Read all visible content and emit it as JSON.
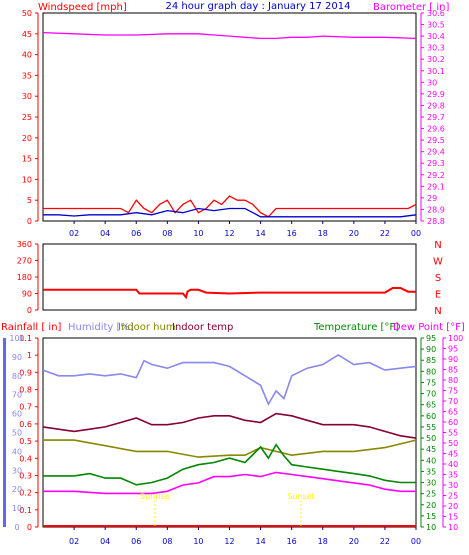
{
  "colors": {
    "windspeed": "#ff0000",
    "avg_wind": "#0000cc",
    "barometer": "#ff00ff",
    "direction": "#ff0000",
    "rainfall": "#ff0000",
    "humidity": "#8888ee",
    "indoor_hum": "#888800",
    "indoor_temp": "#880033",
    "temperature": "#008800",
    "dew_point": "#ff00ff",
    "title": "#0000cc",
    "bar_axis": "#6666ee",
    "annotation": "#ffff00"
  },
  "chart_data": [
    {
      "type": "line",
      "title": "24 hour graph day : January 17 2014",
      "ylabel_left": "Windspeed [mph]",
      "ylabel_right": "Barometer [ in]",
      "x_ticks": [
        "02",
        "04",
        "06",
        "08",
        "10",
        "12",
        "14",
        "16",
        "18",
        "20",
        "22",
        "00"
      ],
      "ylim_left": [
        0,
        50
      ],
      "y_ticks_left": [
        "0",
        "5",
        "10",
        "15",
        "20",
        "25",
        "30",
        "35",
        "40",
        "45",
        "50"
      ],
      "ylim_right": [
        28.8,
        30.6
      ],
      "y_ticks_right": [
        "28.8",
        "28.9",
        "29",
        "29.1",
        "29.2",
        "29.3",
        "29.4",
        "29.5",
        "29.6",
        "29.7",
        "29.8",
        "29.9",
        "30",
        "30.1",
        "30.2",
        "30.3",
        "30.4",
        "30.5",
        "30.6"
      ],
      "x_range_hours": [
        0,
        24
      ],
      "series": [
        {
          "key": "barometer",
          "axis": "right",
          "color_key": "barometer",
          "x": [
            0,
            2,
            4,
            6,
            8,
            10,
            11,
            12,
            13,
            14,
            15,
            16,
            17,
            18,
            20,
            22,
            24
          ],
          "values": [
            30.43,
            30.42,
            30.41,
            30.41,
            30.42,
            30.42,
            30.41,
            30.4,
            30.39,
            30.38,
            30.38,
            30.39,
            30.39,
            30.4,
            30.39,
            30.39,
            30.38
          ]
        },
        {
          "key": "windspeed",
          "axis": "left",
          "color_key": "windspeed",
          "x": [
            0,
            1,
            2,
            3,
            4,
            5,
            5.5,
            6,
            6.5,
            7,
            7.5,
            8,
            8.5,
            9,
            9.5,
            10,
            10.5,
            11,
            11.5,
            12,
            12.5,
            13,
            13.5,
            14,
            14.5,
            15,
            16,
            17,
            18,
            19,
            20,
            21,
            22,
            23,
            23.5,
            24
          ],
          "values": [
            3,
            3,
            3,
            3,
            3,
            3,
            2,
            5,
            3,
            2,
            4,
            5,
            2,
            4,
            5,
            2,
            3,
            5,
            4,
            6,
            5,
            5,
            4,
            2,
            1,
            3,
            3,
            3,
            3,
            3,
            3,
            3,
            3,
            3,
            3,
            4
          ]
        },
        {
          "key": "avg_wind",
          "axis": "left",
          "color_key": "avg_wind",
          "x": [
            0,
            1,
            2,
            3,
            4,
            5,
            6,
            7,
            8,
            9,
            10,
            11,
            12,
            13,
            14,
            15,
            16,
            17,
            18,
            19,
            20,
            21,
            22,
            23,
            24
          ],
          "values": [
            1.5,
            1.5,
            1.2,
            1.5,
            1.5,
            1.5,
            2,
            1.5,
            2.5,
            2,
            3,
            2.5,
            3,
            3,
            1,
            1,
            1,
            1,
            1,
            1,
            1,
            1,
            1,
            1,
            1.5
          ]
        }
      ]
    },
    {
      "type": "line",
      "title": "",
      "y_ticks_left": [
        "360",
        "270",
        "180",
        "90",
        "0"
      ],
      "y_labels_right": [
        "N",
        "W",
        "S",
        "E",
        "N"
      ],
      "ylim": [
        0,
        360
      ],
      "x_range_hours": [
        0,
        24
      ],
      "series": [
        {
          "key": "direction",
          "axis": "left",
          "color_key": "direction",
          "x": [
            0,
            6,
            6.2,
            9,
            9.2,
            9.3,
            9.5,
            10,
            10.5,
            12,
            14,
            17,
            22,
            22.5,
            23,
            23.5,
            24
          ],
          "values": [
            110,
            110,
            90,
            90,
            70,
            100,
            110,
            110,
            95,
            90,
            95,
            95,
            95,
            120,
            120,
            100,
            100
          ]
        }
      ]
    },
    {
      "type": "line",
      "title": "",
      "ylabel_rainfall": "Rainfall [ in]",
      "legend": [
        "Humidity [%]",
        "Indoor hum",
        "Indoor temp"
      ],
      "ylabel_temperature": "Temperature [°F]",
      "ylabel_dewpoint": "Dew Point [°F]",
      "x_ticks": [
        "02",
        "04",
        "06",
        "08",
        "10",
        "12",
        "14",
        "16",
        "18",
        "20",
        "22",
        "00"
      ],
      "x_range_hours": [
        0,
        24
      ],
      "ylim_rain": [
        0,
        1.1
      ],
      "y_ticks_rain": [
        "0",
        "0.1",
        "0.2",
        "0.3",
        "0.4",
        "0.5",
        "0.6",
        "0.7",
        "0.8",
        "0.9",
        "1",
        "1.1"
      ],
      "ylim_humidity": [
        0,
        100
      ],
      "y_ticks_humidity": [
        "0",
        "10",
        "20",
        "30",
        "40",
        "50",
        "60",
        "70",
        "80",
        "90",
        "100"
      ],
      "ylim_temperature": [
        10,
        95
      ],
      "y_ticks_temperature": [
        "10",
        "15",
        "20",
        "25",
        "30",
        "35",
        "40",
        "45",
        "50",
        "55",
        "60",
        "65",
        "70",
        "75",
        "80",
        "85",
        "90",
        "95"
      ],
      "ylim_dewpoint": [
        10,
        100
      ],
      "y_ticks_dewpoint": [
        "10",
        "15",
        "20",
        "25",
        "30",
        "35",
        "40",
        "45",
        "50",
        "55",
        "60",
        "65",
        "70",
        "75",
        "80",
        "85",
        "90",
        "95",
        "100"
      ],
      "annotations": [
        {
          "text": "Sunrise",
          "hour": 7.2
        },
        {
          "text": "Sunset",
          "hour": 16.6
        }
      ],
      "series": [
        {
          "key": "humidity",
          "axis": "humidity",
          "color_key": "humidity",
          "x": [
            0,
            1,
            2,
            3,
            4,
            5,
            6,
            6.5,
            7,
            8,
            9,
            10,
            11,
            12,
            13,
            14,
            14.5,
            15,
            15.5,
            16,
            17,
            18,
            19,
            20,
            21,
            22,
            23,
            24
          ],
          "values": [
            83,
            80,
            80,
            81,
            80,
            81,
            79,
            88,
            86,
            84,
            87,
            87,
            87,
            85,
            80,
            75,
            65,
            72,
            68,
            80,
            84,
            86,
            91,
            86,
            87,
            83,
            84,
            85
          ]
        },
        {
          "key": "indoor_temp",
          "axis": "temperature",
          "color_key": "indoor_temp",
          "x": [
            0,
            1,
            2,
            3,
            4,
            5,
            6,
            7,
            8,
            9,
            10,
            11,
            12,
            13,
            14,
            15,
            16,
            17,
            18,
            19,
            20,
            21,
            22,
            23,
            24
          ],
          "values": [
            55,
            54,
            53,
            54,
            55,
            57,
            59,
            56,
            56,
            57,
            59,
            60,
            60,
            58,
            57,
            61,
            60,
            58,
            56,
            56,
            56,
            55,
            53,
            51,
            50
          ]
        },
        {
          "key": "indoor_hum",
          "axis": "humidity",
          "color_key": "indoor_hum",
          "x": [
            0,
            2,
            4,
            6,
            8,
            10,
            12,
            13,
            14,
            16,
            18,
            20,
            22,
            24
          ],
          "values": [
            46,
            46,
            43,
            40,
            40,
            37,
            38,
            38,
            42,
            38,
            40,
            40,
            42,
            46
          ]
        },
        {
          "key": "temperature",
          "axis": "temperature",
          "color_key": "temperature",
          "x": [
            0,
            1,
            2,
            3,
            4,
            5,
            6,
            7,
            8,
            9,
            10,
            11,
            12,
            13,
            14,
            14.5,
            15,
            15.5,
            16,
            17,
            18,
            19,
            20,
            21,
            22,
            23,
            24
          ],
          "values": [
            33,
            33,
            33,
            34,
            32,
            32,
            29,
            30,
            32,
            36,
            38,
            39,
            41,
            39,
            46,
            41,
            47,
            42,
            38,
            37,
            36,
            35,
            34,
            33,
            31,
            30,
            30
          ]
        },
        {
          "key": "dew_point",
          "axis": "dewpoint",
          "color_key": "dew_point",
          "x": [
            0,
            2,
            4,
            6,
            7,
            8,
            9,
            10,
            11,
            12,
            13,
            14,
            15,
            16,
            17,
            18,
            19,
            20,
            21,
            22,
            23,
            24
          ],
          "values": [
            27,
            27,
            26,
            26,
            26,
            27,
            30,
            31,
            34,
            34,
            35,
            34,
            36,
            35,
            34,
            33,
            32,
            31,
            30,
            28,
            27,
            27
          ]
        }
      ]
    }
  ]
}
